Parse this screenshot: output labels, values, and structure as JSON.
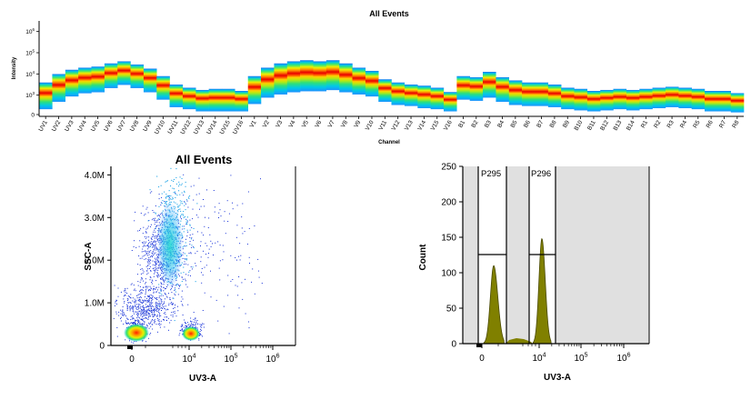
{
  "spectrum": {
    "title": "All Events",
    "xlabel": "Channel",
    "ylabel": "Intensity",
    "y_ticks": [
      {
        "label": "0",
        "exp": "",
        "v": 0
      },
      {
        "label": "10",
        "exp": "3",
        "v": 3
      },
      {
        "label": "10",
        "exp": "4",
        "v": 4
      },
      {
        "label": "10",
        "exp": "5",
        "v": 5
      },
      {
        "label": "10",
        "exp": "6",
        "v": 6
      }
    ]
  },
  "chart_data": [
    {
      "type": "heatmap",
      "title": "All Events",
      "xlabel": "Channel",
      "ylabel": "Intensity",
      "ylim_log10": [
        2,
        6.5
      ],
      "categories": [
        "UV1",
        "UV2",
        "UV3",
        "UV4",
        "UV5",
        "UV6",
        "UV7",
        "UV8",
        "UV9",
        "UV10",
        "UV11",
        "UV12",
        "UV13",
        "UV14",
        "UV15",
        "UV16",
        "V1",
        "V2",
        "V3",
        "V4",
        "V5",
        "V6",
        "V7",
        "V8",
        "V9",
        "V10",
        "V11",
        "V12",
        "V13",
        "V14",
        "V15",
        "V16",
        "B1",
        "B2",
        "B3",
        "B4",
        "B5",
        "B6",
        "B7",
        "B8",
        "B9",
        "B10",
        "B11",
        "B12",
        "B13",
        "B14",
        "R1",
        "R2",
        "R3",
        "R4",
        "R5",
        "R6",
        "R7",
        "R8"
      ],
      "median_log10": [
        2.95,
        3.3,
        3.55,
        3.7,
        3.75,
        3.95,
        4.1,
        3.95,
        3.75,
        3.4,
        3.05,
        2.95,
        2.85,
        2.85,
        2.85,
        2.85,
        3.2,
        3.5,
        3.65,
        3.75,
        3.8,
        3.8,
        3.85,
        3.75,
        3.65,
        3.55,
        3.3,
        3.15,
        3.1,
        3.0,
        2.95,
        2.85,
        3.4,
        3.35,
        3.5,
        3.3,
        3.15,
        3.1,
        3.1,
        3.05,
        2.95,
        2.9,
        2.85,
        2.9,
        2.95,
        2.9,
        2.95,
        3.0,
        3.05,
        3.0,
        2.95,
        2.85,
        2.85,
        2.8
      ],
      "top_log10": [
        3.6,
        4.0,
        4.2,
        4.3,
        4.35,
        4.5,
        4.6,
        4.45,
        4.25,
        3.9,
        3.5,
        3.35,
        3.25,
        3.3,
        3.3,
        3.2,
        3.9,
        4.3,
        4.5,
        4.6,
        4.65,
        4.6,
        4.65,
        4.5,
        4.3,
        4.15,
        3.75,
        3.6,
        3.5,
        3.45,
        3.35,
        3.15,
        3.9,
        3.85,
        4.1,
        3.85,
        3.7,
        3.6,
        3.6,
        3.5,
        3.35,
        3.3,
        3.2,
        3.25,
        3.3,
        3.25,
        3.3,
        3.35,
        3.4,
        3.35,
        3.3,
        3.2,
        3.2,
        3.1
      ],
      "bottom_log10": [
        2.3,
        2.5,
        2.6,
        2.65,
        2.7,
        2.85,
        2.9,
        2.8,
        2.7,
        2.5,
        2.35,
        2.25,
        2.2,
        2.2,
        2.2,
        2.2,
        2.4,
        2.6,
        2.7,
        2.75,
        2.75,
        2.75,
        2.8,
        2.75,
        2.7,
        2.6,
        2.45,
        2.35,
        2.3,
        2.3,
        2.25,
        2.2,
        2.45,
        2.45,
        2.55,
        2.45,
        2.35,
        2.35,
        2.35,
        2.3,
        2.25,
        2.2,
        2.2,
        2.2,
        2.25,
        2.2,
        2.25,
        2.3,
        2.3,
        2.3,
        2.25,
        2.2,
        2.2,
        2.15
      ]
    },
    {
      "type": "scatter",
      "title": "All Events",
      "xlabel": "UV3-A",
      "ylabel": "SSC-A",
      "ylim": [
        0,
        4200000
      ],
      "x_scale": "biexponential",
      "x_ticks": [
        {
          "label": "0",
          "exp": "",
          "v": 0
        },
        {
          "label": "10",
          "exp": "4",
          "v": 4
        },
        {
          "label": "10",
          "exp": "5",
          "v": 5
        },
        {
          "label": "10",
          "exp": "6",
          "v": 6
        }
      ],
      "y_ticks": [
        {
          "label": "0",
          "v": 0
        },
        {
          "label": "1.0M",
          "v": 1000000
        },
        {
          "label": "2.0M",
          "v": 2000000
        },
        {
          "label": "3.0M",
          "v": 3000000
        },
        {
          "label": "4.0M",
          "v": 4000000
        }
      ],
      "populations": [
        {
          "x": 50,
          "y": 300000,
          "density": "high"
        },
        {
          "x": 12000,
          "y": 300000,
          "density": "high"
        },
        {
          "x": 2500,
          "y": 2200000,
          "density": "medium"
        },
        {
          "x": 1200,
          "y": 1200000,
          "density": "low"
        }
      ]
    },
    {
      "type": "area",
      "title": "",
      "xlabel": "UV3-A",
      "ylabel": "Count",
      "ylim": [
        0,
        250
      ],
      "x_scale": "biexponential",
      "x_ticks": [
        {
          "label": "0",
          "exp": "",
          "v": 0
        },
        {
          "label": "10",
          "exp": "4",
          "v": 4
        },
        {
          "label": "10",
          "exp": "5",
          "v": 5
        },
        {
          "label": "10",
          "exp": "6",
          "v": 6
        }
      ],
      "y_ticks": [
        0,
        50,
        100,
        150,
        200,
        250
      ],
      "series": [
        {
          "peak_x": 300,
          "peak_count": 110
        },
        {
          "peak_x": 11000,
          "peak_count": 148
        }
      ],
      "gates": [
        {
          "name": "P295",
          "count_level": 125
        },
        {
          "name": "P296",
          "count_level": 125
        }
      ]
    }
  ]
}
